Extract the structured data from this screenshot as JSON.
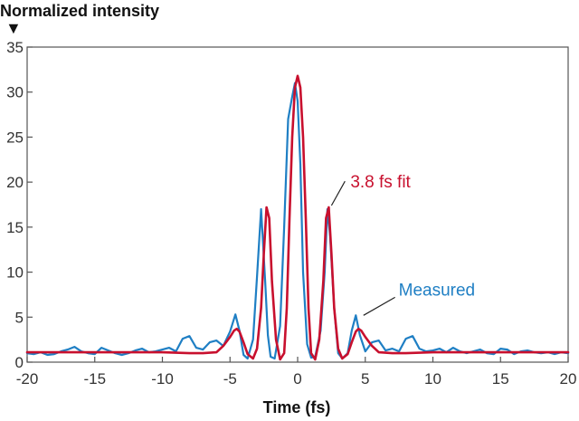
{
  "chart_data": {
    "type": "line",
    "title": "",
    "ylabel": "Normalized intensity",
    "xlabel": "Time (fs)",
    "xlim": [
      -20,
      20
    ],
    "ylim": [
      0,
      35
    ],
    "x_ticks": [
      -20,
      -15,
      -10,
      -5,
      0,
      5,
      10,
      15,
      20
    ],
    "y_ticks": [
      0,
      5,
      10,
      15,
      20,
      25,
      30,
      35
    ],
    "x_tick_labels": [
      "-20",
      "-15",
      "-10",
      "-5",
      "0",
      "5",
      "10",
      "15",
      "20"
    ],
    "y_tick_labels": [
      "0",
      "5",
      "10",
      "15",
      "20",
      "25",
      "30",
      "35"
    ],
    "grid": false,
    "marker_glyph": "▼",
    "series": [
      {
        "name": "Measured",
        "color": "#1f7fc4",
        "x": [
          -20,
          -19.5,
          -19,
          -18.5,
          -18,
          -17.5,
          -17,
          -16.5,
          -16,
          -15.5,
          -15,
          -14.5,
          -14,
          -13.5,
          -13,
          -12.5,
          -12,
          -11.5,
          -11,
          -10.5,
          -10,
          -9.5,
          -9,
          -8.5,
          -8,
          -7.5,
          -7,
          -6.5,
          -6,
          -5.5,
          -5,
          -4.6,
          -4.3,
          -4,
          -3.7,
          -3.3,
          -3,
          -2.7,
          -2.4,
          -2.2,
          -2,
          -1.7,
          -1.3,
          -1,
          -0.7,
          -0.4,
          -0.2,
          0,
          0.2,
          0.4,
          0.7,
          1,
          1.3,
          1.7,
          2,
          2.2,
          2.4,
          2.7,
          3,
          3.3,
          3.7,
          4,
          4.3,
          4.6,
          5,
          5.5,
          6,
          6.5,
          7,
          7.5,
          8,
          8.5,
          9,
          9.5,
          10,
          10.5,
          11,
          11.5,
          12,
          12.5,
          13,
          13.5,
          14,
          14.5,
          15,
          15.5,
          16,
          16.5,
          17,
          17.5,
          18,
          18.5,
          19,
          19.5,
          20
        ],
        "values": [
          1.0,
          0.9,
          1.1,
          0.8,
          0.9,
          1.2,
          1.4,
          1.7,
          1.2,
          1.0,
          0.9,
          1.6,
          1.3,
          1.0,
          0.8,
          1.0,
          1.3,
          1.5,
          1.1,
          1.2,
          1.4,
          1.6,
          1.2,
          2.6,
          2.9,
          1.6,
          1.4,
          2.2,
          2.4,
          1.8,
          3.4,
          5.3,
          3.5,
          0.8,
          0.4,
          2.5,
          9.5,
          17.0,
          9.0,
          3.0,
          0.6,
          0.4,
          4.0,
          15.0,
          27.0,
          29.5,
          31.0,
          29.0,
          22.0,
          10.0,
          2.0,
          0.5,
          0.6,
          3.5,
          10.0,
          17.0,
          14.0,
          6.0,
          1.0,
          0.4,
          1.0,
          3.5,
          5.2,
          3.0,
          1.2,
          2.2,
          2.4,
          1.3,
          1.5,
          1.2,
          2.6,
          2.9,
          1.5,
          1.2,
          1.3,
          1.5,
          1.1,
          1.6,
          1.2,
          1.0,
          1.2,
          1.4,
          1.0,
          0.9,
          1.5,
          1.4,
          0.9,
          1.2,
          1.3,
          1.1,
          1.0,
          1.1,
          0.9,
          1.1,
          1.0
        ]
      },
      {
        "name": "3.8 fs fit",
        "color": "#c8102e",
        "x": [
          -20,
          -15,
          -10,
          -8,
          -7,
          -6,
          -5.5,
          -5,
          -4.7,
          -4.5,
          -4.3,
          -4,
          -3.7,
          -3.3,
          -3,
          -2.7,
          -2.5,
          -2.3,
          -2.1,
          -1.9,
          -1.6,
          -1.3,
          -1,
          -0.8,
          -0.6,
          -0.4,
          -0.2,
          0,
          0.2,
          0.4,
          0.6,
          0.8,
          1,
          1.3,
          1.6,
          1.9,
          2.1,
          2.3,
          2.5,
          2.7,
          3,
          3.3,
          3.7,
          4,
          4.3,
          4.5,
          4.7,
          5,
          5.5,
          6,
          7,
          8,
          10,
          15,
          20
        ],
        "values": [
          1.1,
          1.1,
          1.1,
          1.0,
          1.0,
          1.1,
          1.8,
          2.8,
          3.5,
          3.7,
          3.4,
          2.2,
          0.9,
          0.4,
          1.5,
          6.0,
          12.0,
          17.2,
          16.0,
          9.0,
          2.5,
          0.3,
          1.0,
          6.0,
          16.0,
          25.0,
          30.5,
          31.8,
          30.5,
          25.0,
          16.0,
          6.0,
          1.0,
          0.3,
          2.5,
          9.0,
          16.0,
          17.2,
          12.0,
          6.0,
          1.5,
          0.4,
          0.9,
          2.2,
          3.4,
          3.7,
          3.5,
          2.8,
          1.8,
          1.1,
          1.0,
          1.0,
          1.1,
          1.1,
          1.1
        ]
      }
    ],
    "annotations": [
      {
        "text": "3.8 fs fit",
        "color": "#c8102e",
        "point": [
          2.3,
          17.2
        ]
      },
      {
        "text": "Measured",
        "color": "#1f7fc4",
        "point": [
          4.6,
          5.2
        ]
      }
    ]
  }
}
